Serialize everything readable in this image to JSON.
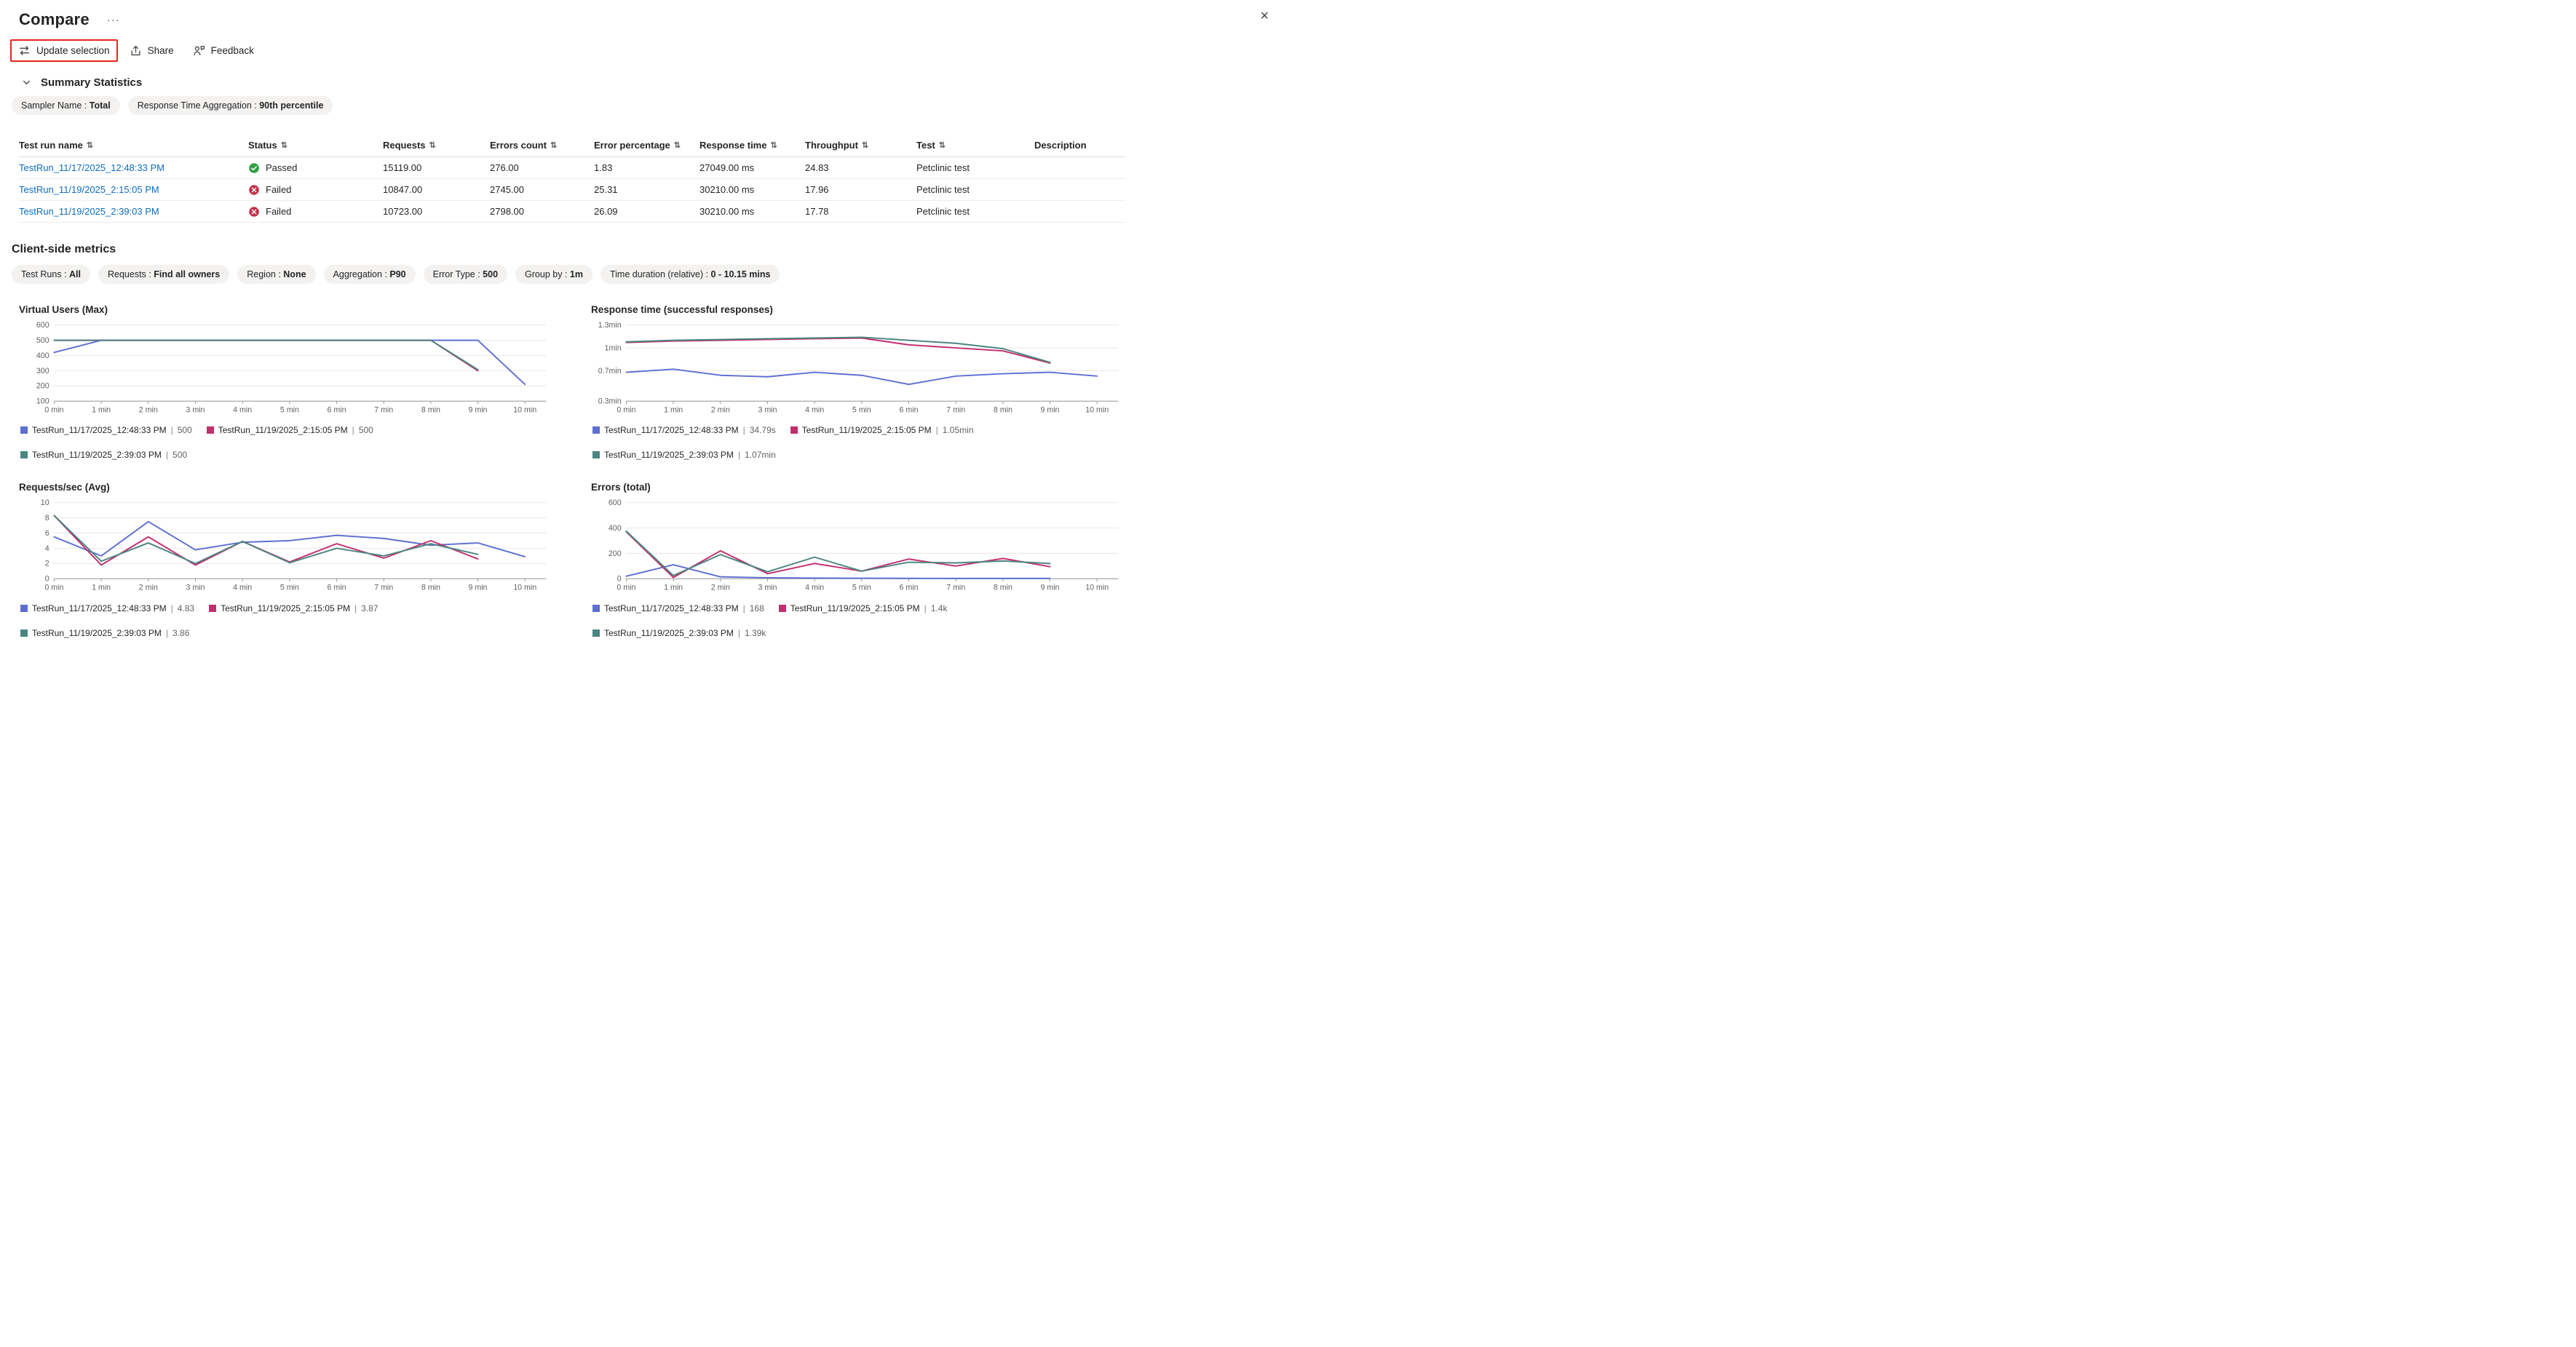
{
  "colors": {
    "blue": "#5e6fd2",
    "magenta": "#c22f6e",
    "teal": "#4c8581",
    "link": "#0f6cbd",
    "highlight": "#e5261e",
    "passed": "#2f9e44",
    "failed": "#c4314b"
  },
  "ui": {
    "pill_separator": " : ",
    "legend_separator": "|",
    "sort_glyph": "⇅"
  },
  "header": {
    "title": "Compare",
    "more": "···",
    "close": "×"
  },
  "toolbar": {
    "update_selection": "Update selection",
    "share": "Share",
    "feedback": "Feedback"
  },
  "summary_section": {
    "title": "Summary Statistics",
    "pills": [
      {
        "label": "Sampler Name",
        "value": "Total"
      },
      {
        "label": "Response Time Aggregation",
        "value": "90th percentile"
      }
    ]
  },
  "table": {
    "columns": [
      {
        "label": "Test run name",
        "sortable": true
      },
      {
        "label": "Status",
        "sortable": true
      },
      {
        "label": "Requests",
        "sortable": true
      },
      {
        "label": "Errors count",
        "sortable": true
      },
      {
        "label": "Error percentage",
        "sortable": true
      },
      {
        "label": "Response time",
        "sortable": true
      },
      {
        "label": "Throughput",
        "sortable": true
      },
      {
        "label": "Test",
        "sortable": true
      },
      {
        "label": "Description",
        "sortable": false
      }
    ],
    "rows": [
      {
        "name": "TestRun_11/17/2025_12:48:33 PM",
        "status": "Passed",
        "status_kind": "passed",
        "requests": "15119.00",
        "errors_count": "276.00",
        "error_percentage": "1.83",
        "response_time": "27049.00 ms",
        "throughput": "24.83",
        "test": "Petclinic test",
        "description": ""
      },
      {
        "name": "TestRun_11/19/2025_2:15:05 PM",
        "status": "Failed",
        "status_kind": "failed",
        "requests": "10847.00",
        "errors_count": "2745.00",
        "error_percentage": "25.31",
        "response_time": "30210.00 ms",
        "throughput": "17.96",
        "test": "Petclinic test",
        "description": ""
      },
      {
        "name": "TestRun_11/19/2025_2:39:03 PM",
        "status": "Failed",
        "status_kind": "failed",
        "requests": "10723.00",
        "errors_count": "2798.00",
        "error_percentage": "26.09",
        "response_time": "30210.00 ms",
        "throughput": "17.78",
        "test": "Petclinic test",
        "description": ""
      }
    ]
  },
  "client_metrics": {
    "title": "Client-side metrics",
    "pills": [
      {
        "label": "Test Runs",
        "value": "All"
      },
      {
        "label": "Requests",
        "value": "Find all owners"
      },
      {
        "label": "Region",
        "value": "None"
      },
      {
        "label": "Aggregation",
        "value": "P90"
      },
      {
        "label": "Error Type",
        "value": "500"
      },
      {
        "label": "Group by",
        "value": "1m"
      },
      {
        "label": "Time duration (relative)",
        "value": "0 - 10.15 mins"
      }
    ]
  },
  "chart_data": [
    {
      "type": "line",
      "title": "Virtual Users (Max)",
      "xlabel": "",
      "ylabel": "",
      "xlim": [
        0,
        10.45
      ],
      "ylim": [
        100,
        600
      ],
      "xtick_labels": [
        "0 min",
        "1 min",
        "2 min",
        "3 min",
        "4 min",
        "5 min",
        "6 min",
        "7 min",
        "8 min",
        "9 min",
        "10 min"
      ],
      "yticks": [
        {
          "value": 100,
          "label": "100"
        },
        {
          "value": 200,
          "label": "200"
        },
        {
          "value": 300,
          "label": "300"
        },
        {
          "value": 400,
          "label": "400"
        },
        {
          "value": 500,
          "label": "500"
        },
        {
          "value": 600,
          "label": "600"
        }
      ],
      "series": [
        {
          "name": "TestRun_11/17/2025_12:48:33 PM",
          "value": "500",
          "color": "blue",
          "points": [
            [
              0,
              420
            ],
            [
              1,
              500
            ],
            [
              2,
              500
            ],
            [
              3,
              500
            ],
            [
              4,
              500
            ],
            [
              5,
              500
            ],
            [
              6,
              500
            ],
            [
              7,
              500
            ],
            [
              8,
              500
            ],
            [
              9,
              500
            ],
            [
              10,
              210
            ]
          ]
        },
        {
          "name": "TestRun_11/19/2025_2:15:05 PM",
          "value": "500",
          "color": "magenta",
          "points": [
            [
              0,
              500
            ],
            [
              1,
              500
            ],
            [
              2,
              500
            ],
            [
              3,
              500
            ],
            [
              4,
              500
            ],
            [
              5,
              500
            ],
            [
              6,
              500
            ],
            [
              7,
              500
            ],
            [
              8,
              500
            ],
            [
              9,
              300
            ]
          ]
        },
        {
          "name": "TestRun_11/19/2025_2:39:03 PM",
          "value": "500",
          "color": "teal",
          "points": [
            [
              0,
              500
            ],
            [
              1,
              500
            ],
            [
              2,
              500
            ],
            [
              3,
              500
            ],
            [
              4,
              500
            ],
            [
              5,
              500
            ],
            [
              6,
              500
            ],
            [
              7,
              500
            ],
            [
              8,
              500
            ],
            [
              9,
              307
            ]
          ]
        }
      ]
    },
    {
      "type": "line",
      "title": "Response time (successful responses)",
      "xlabel": "",
      "ylabel": "",
      "xlim": [
        0,
        10.45
      ],
      "ylim": [
        0.3,
        1.3
      ],
      "xtick_labels": [
        "0 min",
        "1 min",
        "2 min",
        "3 min",
        "4 min",
        "5 min",
        "6 min",
        "7 min",
        "8 min",
        "9 min",
        "10 min"
      ],
      "yticks": [
        {
          "value": 0.3,
          "label": "0.3min"
        },
        {
          "value": 0.7,
          "label": "0.7min"
        },
        {
          "value": 1,
          "label": "1min"
        },
        {
          "value": 1.3,
          "label": "1.3min"
        }
      ],
      "series": [
        {
          "name": "TestRun_11/17/2025_12:48:33 PM",
          "value": "34.79s",
          "color": "blue",
          "points": [
            [
              0,
              0.68
            ],
            [
              1,
              0.72
            ],
            [
              2,
              0.64
            ],
            [
              3,
              0.62
            ],
            [
              4,
              0.68
            ],
            [
              5,
              0.64
            ],
            [
              6,
              0.52
            ],
            [
              7,
              0.63
            ],
            [
              8,
              0.66
            ],
            [
              9,
              0.68
            ],
            [
              10,
              0.63
            ]
          ]
        },
        {
          "name": "TestRun_11/19/2025_2:15:05 PM",
          "value": "1.05min",
          "color": "magenta",
          "points": [
            [
              0,
              1.07
            ],
            [
              1,
              1.09
            ],
            [
              2,
              1.1
            ],
            [
              3,
              1.11
            ],
            [
              4,
              1.12
            ],
            [
              5,
              1.13
            ],
            [
              6,
              1.04
            ],
            [
              7,
              1.0
            ],
            [
              8,
              0.96
            ],
            [
              9,
              0.8
            ]
          ]
        },
        {
          "name": "TestRun_11/19/2025_2:39:03 PM",
          "value": "1.07min",
          "color": "teal",
          "points": [
            [
              0,
              1.08
            ],
            [
              1,
              1.1
            ],
            [
              2,
              1.11
            ],
            [
              3,
              1.12
            ],
            [
              4,
              1.13
            ],
            [
              5,
              1.14
            ],
            [
              6,
              1.1
            ],
            [
              7,
              1.06
            ],
            [
              8,
              0.99
            ],
            [
              9,
              0.81
            ]
          ]
        }
      ]
    },
    {
      "type": "line",
      "title": "Requests/sec (Avg)",
      "xlabel": "",
      "ylabel": "",
      "xlim": [
        0,
        10.45
      ],
      "ylim": [
        0,
        10
      ],
      "xtick_labels": [
        "0 min",
        "1 min",
        "2 min",
        "3 min",
        "4 min",
        "5 min",
        "6 min",
        "7 min",
        "8 min",
        "9 min",
        "10 min"
      ],
      "yticks": [
        {
          "value": 0,
          "label": "0"
        },
        {
          "value": 2,
          "label": "2"
        },
        {
          "value": 4,
          "label": "4"
        },
        {
          "value": 6,
          "label": "6"
        },
        {
          "value": 8,
          "label": "8"
        },
        {
          "value": 10,
          "label": "10"
        }
      ],
      "series": [
        {
          "name": "TestRun_11/17/2025_12:48:33 PM",
          "value": "4.83",
          "color": "blue",
          "points": [
            [
              0,
              5.5
            ],
            [
              1,
              3.0
            ],
            [
              2,
              7.5
            ],
            [
              3,
              3.8
            ],
            [
              4,
              4.8
            ],
            [
              5,
              5.0
            ],
            [
              6,
              5.7
            ],
            [
              7,
              5.3
            ],
            [
              8,
              4.4
            ],
            [
              9,
              4.7
            ],
            [
              10,
              2.9
            ]
          ]
        },
        {
          "name": "TestRun_11/19/2025_2:15:05 PM",
          "value": "3.87",
          "color": "magenta",
          "points": [
            [
              0,
              8.3
            ],
            [
              1,
              1.8
            ],
            [
              2,
              5.5
            ],
            [
              3,
              1.8
            ],
            [
              4,
              4.9
            ],
            [
              5,
              2.2
            ],
            [
              6,
              4.6
            ],
            [
              7,
              2.7
            ],
            [
              8,
              5.0
            ],
            [
              9,
              2.6
            ]
          ]
        },
        {
          "name": "TestRun_11/19/2025_2:39:03 PM",
          "value": "3.86",
          "color": "teal",
          "points": [
            [
              0,
              8.3
            ],
            [
              1,
              2.3
            ],
            [
              2,
              4.7
            ],
            [
              3,
              2.0
            ],
            [
              4,
              4.9
            ],
            [
              5,
              2.1
            ],
            [
              6,
              4.0
            ],
            [
              7,
              3.0
            ],
            [
              8,
              4.6
            ],
            [
              9,
              3.2
            ]
          ]
        }
      ]
    },
    {
      "type": "line",
      "title": "Errors (total)",
      "xlabel": "",
      "ylabel": "",
      "xlim": [
        0,
        10.45
      ],
      "ylim": [
        0,
        600
      ],
      "xtick_labels": [
        "0 min",
        "1 min",
        "2 min",
        "3 min",
        "4 min",
        "5 min",
        "6 min",
        "7 min",
        "8 min",
        "9 min",
        "10 min"
      ],
      "yticks": [
        {
          "value": 0,
          "label": "0"
        },
        {
          "value": 200,
          "label": "200"
        },
        {
          "value": 400,
          "label": "400"
        },
        {
          "value": 600,
          "label": "600"
        }
      ],
      "series": [
        {
          "name": "TestRun_11/17/2025_12:48:33 PM",
          "value": "168",
          "color": "blue",
          "points": [
            [
              0,
              20
            ],
            [
              1,
              110
            ],
            [
              2,
              15
            ],
            [
              3,
              8
            ],
            [
              4,
              5
            ],
            [
              5,
              4
            ],
            [
              6,
              3
            ],
            [
              7,
              2
            ],
            [
              8,
              2
            ],
            [
              9,
              2
            ]
          ]
        },
        {
          "name": "TestRun_11/19/2025_2:15:05 PM",
          "value": "1.4k",
          "color": "magenta",
          "points": [
            [
              0,
              370
            ],
            [
              1,
              10
            ],
            [
              2,
              220
            ],
            [
              3,
              40
            ],
            [
              4,
              120
            ],
            [
              5,
              60
            ],
            [
              6,
              155
            ],
            [
              7,
              100
            ],
            [
              8,
              160
            ],
            [
              9,
              95
            ]
          ]
        },
        {
          "name": "TestRun_11/19/2025_2:39:03 PM",
          "value": "1.39k",
          "color": "teal",
          "points": [
            [
              0,
              375
            ],
            [
              1,
              25
            ],
            [
              2,
              190
            ],
            [
              3,
              55
            ],
            [
              4,
              170
            ],
            [
              5,
              60
            ],
            [
              6,
              130
            ],
            [
              7,
              125
            ],
            [
              8,
              140
            ],
            [
              9,
              120
            ]
          ]
        }
      ]
    }
  ]
}
